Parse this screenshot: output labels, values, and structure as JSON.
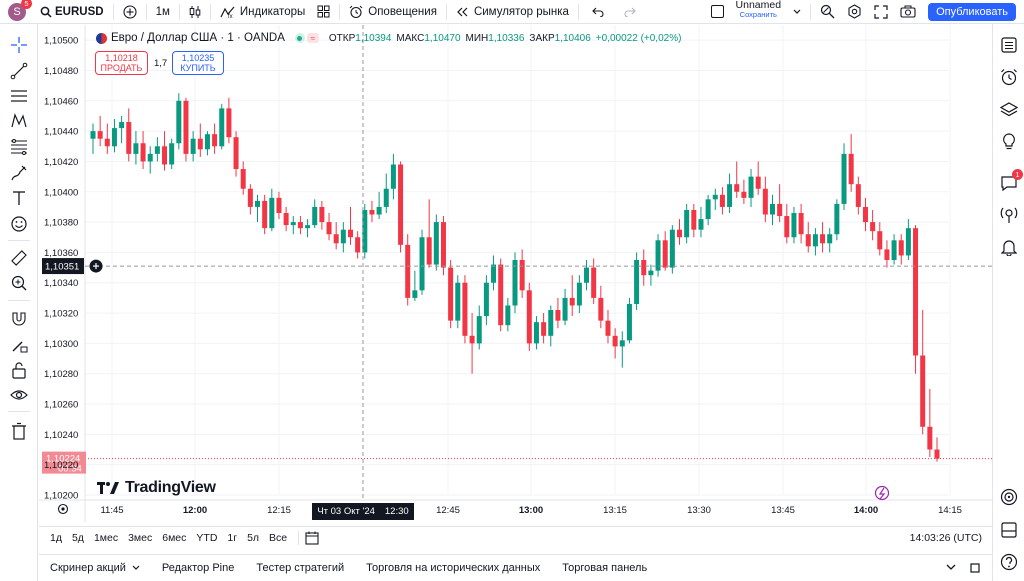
{
  "topbar": {
    "avatar_letter": "S",
    "avatar_badge": "5",
    "symbol": "EURUSD",
    "interval": "1м",
    "indicators": "Индикаторы",
    "alerts": "Оповещения",
    "replay": "Симулятор рынка",
    "layout_name": "Unnamed",
    "layout_status": "Сохранить",
    "publish": "Опубликовать"
  },
  "legend": {
    "title": "Евро / Доллар США · 1 · OANDA",
    "open_label": "ОТКР",
    "open": "1,10394",
    "high_label": "МАКС",
    "high": "1,10470",
    "low_label": "МИН",
    "low": "1,10336",
    "close_label": "ЗАКР",
    "close": "1,10406",
    "change": "+0,00022 (+0,02%)"
  },
  "trade": {
    "sell_price": "1,10218",
    "sell_label": "ПРОДАТЬ",
    "spread": "1,7",
    "buy_price": "1,10235",
    "buy_label": "КУПИТЬ"
  },
  "price_axis": {
    "ticks": [
      "1,10500",
      "1,10480",
      "1,10460",
      "1,10440",
      "1,10420",
      "1,10400",
      "1,10380",
      "1,10360",
      "1,10340",
      "1,10320",
      "1,10300",
      "1,10280",
      "1,10260",
      "1,10240",
      "1,10220",
      "1,10200"
    ],
    "crosshair_price": "1,10351",
    "last_price": "1,10224",
    "countdown": "00:34"
  },
  "time_axis": {
    "ticks": [
      {
        "label": "11:45",
        "bold": false
      },
      {
        "label": "12:00",
        "bold": true
      },
      {
        "label": "12:15",
        "bold": false
      },
      {
        "label": "12:45",
        "bold": false
      },
      {
        "label": "13:00",
        "bold": true
      },
      {
        "label": "13:15",
        "bold": false
      },
      {
        "label": "13:30",
        "bold": false
      },
      {
        "label": "13:45",
        "bold": false
      },
      {
        "label": "14:00",
        "bold": true
      },
      {
        "label": "14:15",
        "bold": false
      }
    ],
    "crosshair_date": "Чт 03 Окт '24",
    "crosshair_time": "12:30"
  },
  "chart_data": {
    "type": "candlestick",
    "symbol": "EURUSD",
    "ylim": [
      1.102,
      1.1051
    ],
    "up_color": "#089981",
    "down_color": "#f23645",
    "candles": [
      [
        1.10435,
        1.10445,
        1.10425,
        1.1044
      ],
      [
        1.1044,
        1.1045,
        1.1043,
        1.10435
      ],
      [
        1.10435,
        1.10445,
        1.10425,
        1.1043
      ],
      [
        1.1043,
        1.10448,
        1.10426,
        1.10442
      ],
      [
        1.10442,
        1.1045,
        1.10432,
        1.10446
      ],
      [
        1.10446,
        1.10455,
        1.1042,
        1.10425
      ],
      [
        1.10425,
        1.1044,
        1.10418,
        1.10432
      ],
      [
        1.10432,
        1.1044,
        1.10415,
        1.1042
      ],
      [
        1.1042,
        1.1043,
        1.10412,
        1.10425
      ],
      [
        1.10425,
        1.10436,
        1.1042,
        1.1043
      ],
      [
        1.1043,
        1.1044,
        1.10414,
        1.10418
      ],
      [
        1.10418,
        1.10435,
        1.10415,
        1.10432
      ],
      [
        1.10432,
        1.10465,
        1.10428,
        1.1046
      ],
      [
        1.1046,
        1.10462,
        1.1042,
        1.10425
      ],
      [
        1.10425,
        1.1044,
        1.1042,
        1.10435
      ],
      [
        1.10435,
        1.10445,
        1.10423,
        1.10428
      ],
      [
        1.10428,
        1.1044,
        1.10424,
        1.10438
      ],
      [
        1.10438,
        1.10445,
        1.10425,
        1.1043
      ],
      [
        1.1043,
        1.10458,
        1.10428,
        1.10455
      ],
      [
        1.10455,
        1.10462,
        1.10432,
        1.10436
      ],
      [
        1.10436,
        1.1044,
        1.1041,
        1.10415
      ],
      [
        1.10415,
        1.1042,
        1.10398,
        1.10402
      ],
      [
        1.10402,
        1.10405,
        1.10385,
        1.1039
      ],
      [
        1.1039,
        1.10398,
        1.1038,
        1.10394
      ],
      [
        1.10394,
        1.10398,
        1.10372,
        1.10376
      ],
      [
        1.10376,
        1.10402,
        1.10374,
        1.10396
      ],
      [
        1.10396,
        1.104,
        1.10382,
        1.10386
      ],
      [
        1.10386,
        1.1039,
        1.10374,
        1.10378
      ],
      [
        1.10378,
        1.10384,
        1.10372,
        1.1038
      ],
      [
        1.1038,
        1.10384,
        1.10372,
        1.10376
      ],
      [
        1.10376,
        1.10382,
        1.1037,
        1.10378
      ],
      [
        1.10378,
        1.10395,
        1.10376,
        1.1039
      ],
      [
        1.1039,
        1.10394,
        1.10375,
        1.1038
      ],
      [
        1.1038,
        1.10386,
        1.10368,
        1.10372
      ],
      [
        1.10372,
        1.1038,
        1.10362,
        1.10366
      ],
      [
        1.10366,
        1.1038,
        1.1036,
        1.10375
      ],
      [
        1.10375,
        1.1039,
        1.10365,
        1.1037
      ],
      [
        1.1037,
        1.10374,
        1.10356,
        1.1036
      ],
      [
        1.1036,
        1.10392,
        1.10356,
        1.10388
      ],
      [
        1.10388,
        1.10394,
        1.1038,
        1.10385
      ],
      [
        1.10385,
        1.104,
        1.10382,
        1.1039
      ],
      [
        1.1039,
        1.10412,
        1.10386,
        1.10402
      ],
      [
        1.10402,
        1.10425,
        1.10395,
        1.10418
      ],
      [
        1.10418,
        1.1042,
        1.1036,
        1.10365
      ],
      [
        1.10365,
        1.10372,
        1.10325,
        1.1033
      ],
      [
        1.1033,
        1.10348,
        1.10328,
        1.10335
      ],
      [
        1.10335,
        1.10375,
        1.10332,
        1.1037
      ],
      [
        1.1037,
        1.10395,
        1.1035,
        1.10352
      ],
      [
        1.10352,
        1.10385,
        1.10348,
        1.1038
      ],
      [
        1.1038,
        1.10384,
        1.10345,
        1.1035
      ],
      [
        1.1035,
        1.10355,
        1.1031,
        1.10315
      ],
      [
        1.10315,
        1.10345,
        1.1031,
        1.1034
      ],
      [
        1.1034,
        1.10345,
        1.103,
        1.10305
      ],
      [
        1.10305,
        1.1032,
        1.1028,
        1.103
      ],
      [
        1.103,
        1.10325,
        1.10296,
        1.10318
      ],
      [
        1.10318,
        1.10345,
        1.10312,
        1.1034
      ],
      [
        1.1034,
        1.10358,
        1.10335,
        1.10352
      ],
      [
        1.10352,
        1.10356,
        1.10308,
        1.10312
      ],
      [
        1.10312,
        1.1033,
        1.10308,
        1.10325
      ],
      [
        1.10325,
        1.1036,
        1.1032,
        1.10355
      ],
      [
        1.10355,
        1.10362,
        1.1033,
        1.10335
      ],
      [
        1.10335,
        1.1034,
        1.10295,
        1.103
      ],
      [
        1.103,
        1.10318,
        1.10296,
        1.10314
      ],
      [
        1.10314,
        1.1032,
        1.103,
        1.10305
      ],
      [
        1.10305,
        1.10325,
        1.10298,
        1.10322
      ],
      [
        1.10322,
        1.1033,
        1.1031,
        1.10315
      ],
      [
        1.10315,
        1.10336,
        1.10312,
        1.1033
      ],
      [
        1.1033,
        1.10345,
        1.10318,
        1.10325
      ],
      [
        1.10325,
        1.10345,
        1.1032,
        1.1034
      ],
      [
        1.1034,
        1.10355,
        1.10335,
        1.1035
      ],
      [
        1.1035,
        1.10356,
        1.10326,
        1.1033
      ],
      [
        1.1033,
        1.10338,
        1.1031,
        1.10315
      ],
      [
        1.10315,
        1.10322,
        1.103,
        1.10305
      ],
      [
        1.10305,
        1.1031,
        1.1029,
        1.10298
      ],
      [
        1.10298,
        1.10308,
        1.10284,
        1.10302
      ],
      [
        1.10302,
        1.1033,
        1.103,
        1.10326
      ],
      [
        1.10326,
        1.1036,
        1.10322,
        1.10355
      ],
      [
        1.10355,
        1.10362,
        1.10338,
        1.10345
      ],
      [
        1.10345,
        1.10352,
        1.10338,
        1.10348
      ],
      [
        1.10348,
        1.10372,
        1.10344,
        1.10368
      ],
      [
        1.10368,
        1.10374,
        1.10348,
        1.1035
      ],
      [
        1.1035,
        1.10378,
        1.10346,
        1.10375
      ],
      [
        1.10375,
        1.10382,
        1.10365,
        1.1037
      ],
      [
        1.1037,
        1.10392,
        1.10366,
        1.10388
      ],
      [
        1.10388,
        1.10392,
        1.1037,
        1.10375
      ],
      [
        1.10375,
        1.1039,
        1.1037,
        1.10382
      ],
      [
        1.10382,
        1.10398,
        1.10378,
        1.10395
      ],
      [
        1.10395,
        1.10402,
        1.10388,
        1.10398
      ],
      [
        1.10398,
        1.10403,
        1.10385,
        1.1039
      ],
      [
        1.1039,
        1.10412,
        1.10386,
        1.10405
      ],
      [
        1.10405,
        1.1042,
        1.10396,
        1.104
      ],
      [
        1.104,
        1.10408,
        1.10392,
        1.10396
      ],
      [
        1.10396,
        1.10415,
        1.1039,
        1.1041
      ],
      [
        1.1041,
        1.1042,
        1.10398,
        1.10402
      ],
      [
        1.10402,
        1.1041,
        1.1038,
        1.10385
      ],
      [
        1.10385,
        1.10398,
        1.10378,
        1.10392
      ],
      [
        1.10392,
        1.10405,
        1.1038,
        1.10384
      ],
      [
        1.10384,
        1.10392,
        1.10366,
        1.1037
      ],
      [
        1.1037,
        1.1039,
        1.10366,
        1.10386
      ],
      [
        1.10386,
        1.10392,
        1.10366,
        1.10372
      ],
      [
        1.10372,
        1.1038,
        1.1036,
        1.10364
      ],
      [
        1.10364,
        1.10376,
        1.10358,
        1.10372
      ],
      [
        1.10372,
        1.1038,
        1.1036,
        1.10366
      ],
      [
        1.10366,
        1.10376,
        1.1036,
        1.10372
      ],
      [
        1.10372,
        1.10395,
        1.10368,
        1.10392
      ],
      [
        1.10392,
        1.10432,
        1.10388,
        1.10425
      ],
      [
        1.10425,
        1.10438,
        1.104,
        1.10405
      ],
      [
        1.10405,
        1.1041,
        1.10385,
        1.1039
      ],
      [
        1.1039,
        1.10396,
        1.10374,
        1.1038
      ],
      [
        1.1038,
        1.10388,
        1.10368,
        1.10374
      ],
      [
        1.10374,
        1.1038,
        1.10358,
        1.10362
      ],
      [
        1.10362,
        1.10368,
        1.1035,
        1.10355
      ],
      [
        1.10355,
        1.10372,
        1.10352,
        1.10368
      ],
      [
        1.10368,
        1.10372,
        1.10352,
        1.10358
      ],
      [
        1.10358,
        1.10382,
        1.10355,
        1.10376
      ],
      [
        1.10376,
        1.10378,
        1.1028,
        1.10292
      ],
      [
        1.10292,
        1.10322,
        1.1024,
        1.10245
      ],
      [
        1.10245,
        1.1027,
        1.10225,
        1.1023
      ],
      [
        1.1023,
        1.10238,
        1.10222,
        1.10224
      ]
    ]
  },
  "range_bar": {
    "ranges": [
      "1д",
      "5д",
      "1мес",
      "3мес",
      "6мес",
      "YTD",
      "1г",
      "5л",
      "Все"
    ],
    "clock": "14:03:26 (UTC)"
  },
  "panels": [
    "Скринер акций",
    "Редактор Pine",
    "Тестер стратегий",
    "Торговля на исторических данных",
    "Торговая панель"
  ],
  "colors": {
    "accent": "#2962ff",
    "up": "#089981",
    "down": "#f23645",
    "axis_text": "#131722",
    "grid": "#f0f3fa"
  }
}
